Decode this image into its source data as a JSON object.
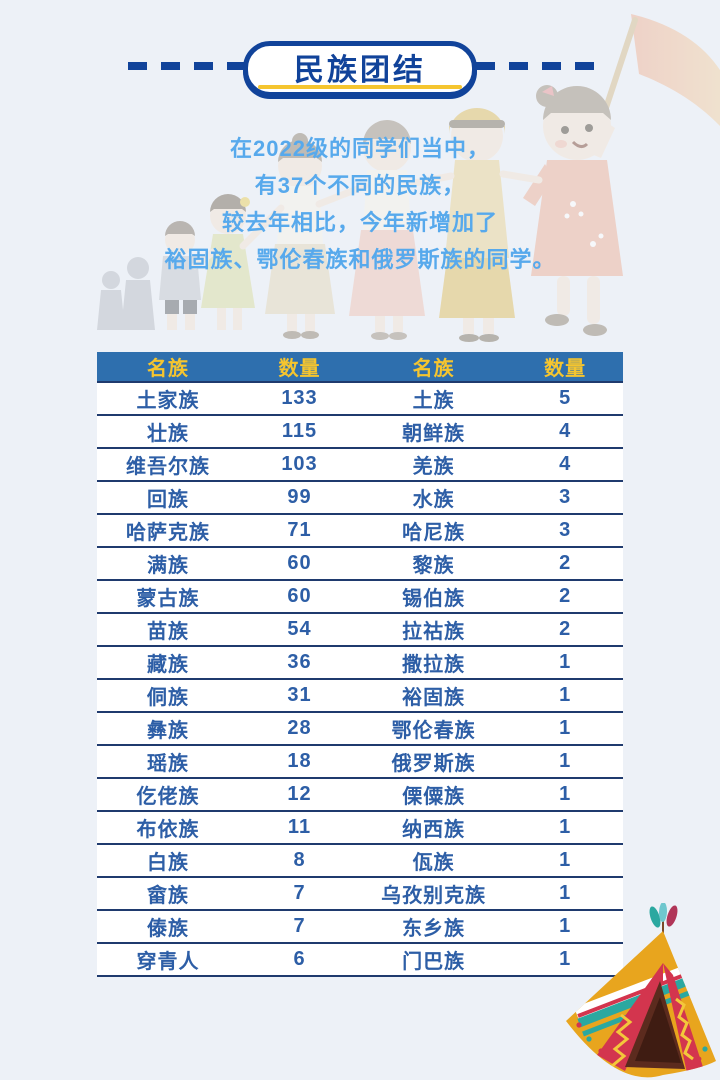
{
  "header": {
    "title": "民族团结"
  },
  "intro": {
    "lines": [
      "在2022级的同学们当中，",
      "有37个不同的民族，",
      "较去年相比，今年新增加了",
      "裕固族、鄂伦春族和俄罗斯族的同学。"
    ]
  },
  "table": {
    "headers": [
      "名族",
      "数量",
      "名族",
      "数量"
    ],
    "rows": [
      [
        "土家族",
        "133",
        "土族",
        "5"
      ],
      [
        "壮族",
        "115",
        "朝鲜族",
        "4"
      ],
      [
        "维吾尔族",
        "103",
        "羌族",
        "4"
      ],
      [
        "回族",
        "99",
        "水族",
        "3"
      ],
      [
        "哈萨克族",
        "71",
        "哈尼族",
        "3"
      ],
      [
        "满族",
        "60",
        "黎族",
        "2"
      ],
      [
        "蒙古族",
        "60",
        "锡伯族",
        "2"
      ],
      [
        "苗族",
        "54",
        "拉祜族",
        "2"
      ],
      [
        "藏族",
        "36",
        "撒拉族",
        "1"
      ],
      [
        "侗族",
        "31",
        "裕固族",
        "1"
      ],
      [
        "彝族",
        "28",
        "鄂伦春族",
        "1"
      ],
      [
        "瑶族",
        "18",
        "俄罗斯族",
        "1"
      ],
      [
        "仡佬族",
        "12",
        "傈僳族",
        "1"
      ],
      [
        "布依族",
        "11",
        "纳西族",
        "1"
      ],
      [
        "白族",
        "8",
        "佤族",
        "1"
      ],
      [
        "畲族",
        "7",
        "乌孜别克族",
        "1"
      ],
      [
        "傣族",
        "7",
        "东乡族",
        "1"
      ],
      [
        "穿青人",
        "6",
        "门巴族",
        "1"
      ]
    ]
  },
  "decorations": {
    "children_illustration": "children-holding-hands",
    "flag": "red-flag",
    "teepee": "colorful-teepee-tent"
  },
  "colors": {
    "page_bg": "#EDF1F7",
    "navy": "#11439A",
    "yellow": "#F5C52F",
    "sky_blue": "#57A9EC",
    "header_bg": "#2E6FAE",
    "cell_text": "#2D5EA6",
    "separator": "#1F3A6E"
  },
  "chart_data": {
    "type": "table",
    "title": "民族团结",
    "columns": [
      "名族",
      "数量",
      "名族",
      "数量"
    ],
    "total_ethnic_groups_note": "有37个不同的民族",
    "groups": [
      {
        "name": "土家族",
        "count": 133
      },
      {
        "name": "壮族",
        "count": 115
      },
      {
        "name": "维吾尔族",
        "count": 103
      },
      {
        "name": "回族",
        "count": 99
      },
      {
        "name": "哈萨克族",
        "count": 71
      },
      {
        "name": "满族",
        "count": 60
      },
      {
        "name": "蒙古族",
        "count": 60
      },
      {
        "name": "苗族",
        "count": 54
      },
      {
        "name": "藏族",
        "count": 36
      },
      {
        "name": "侗族",
        "count": 31
      },
      {
        "name": "彝族",
        "count": 28
      },
      {
        "name": "瑶族",
        "count": 18
      },
      {
        "name": "仡佬族",
        "count": 12
      },
      {
        "name": "布依族",
        "count": 11
      },
      {
        "name": "白族",
        "count": 8
      },
      {
        "name": "畲族",
        "count": 7
      },
      {
        "name": "傣族",
        "count": 7
      },
      {
        "name": "穿青人",
        "count": 6
      },
      {
        "name": "土族",
        "count": 5
      },
      {
        "name": "朝鲜族",
        "count": 4
      },
      {
        "name": "羌族",
        "count": 4
      },
      {
        "name": "水族",
        "count": 3
      },
      {
        "name": "哈尼族",
        "count": 3
      },
      {
        "name": "黎族",
        "count": 2
      },
      {
        "name": "锡伯族",
        "count": 2
      },
      {
        "name": "拉祜族",
        "count": 2
      },
      {
        "name": "撒拉族",
        "count": 1
      },
      {
        "name": "裕固族",
        "count": 1
      },
      {
        "name": "鄂伦春族",
        "count": 1
      },
      {
        "name": "俄罗斯族",
        "count": 1
      },
      {
        "name": "傈僳族",
        "count": 1
      },
      {
        "name": "纳西族",
        "count": 1
      },
      {
        "name": "佤族",
        "count": 1
      },
      {
        "name": "乌孜别克族",
        "count": 1
      },
      {
        "name": "东乡族",
        "count": 1
      },
      {
        "name": "门巴族",
        "count": 1
      }
    ]
  }
}
